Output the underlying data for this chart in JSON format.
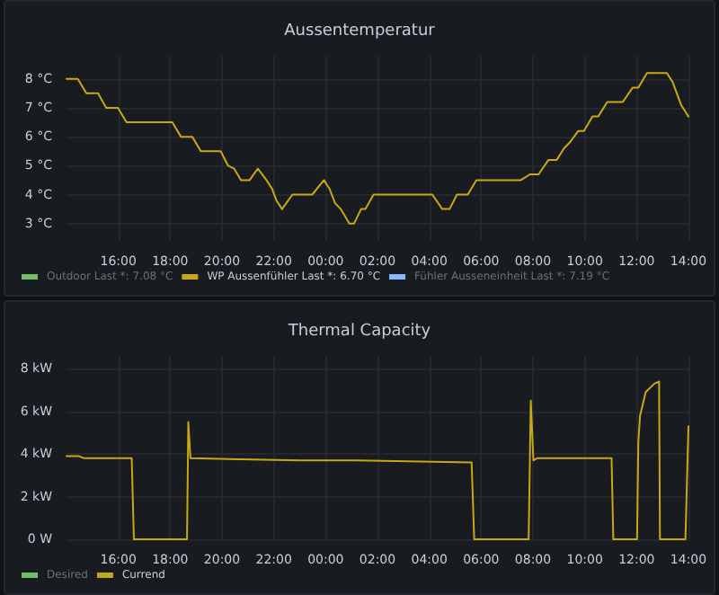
{
  "chart_data": [
    {
      "type": "line",
      "title": "Aussentemperatur",
      "x": [
        "--01-01T14:00",
        "--01-01T14:26",
        "--01-01T14:46",
        "--01-01T15:13",
        "--01-01T15:32",
        "--01-01T15:59",
        "--01-01T16:19",
        "--01-01T18:05",
        "--01-01T18:25",
        "--01-01T18:51",
        "--01-01T19:11",
        "--01-01T19:57",
        "--01-01T20:14",
        "--01-01T20:28",
        "--01-01T20:44",
        "--01-01T21:04",
        "--01-01T21:23",
        "--01-01T21:43",
        "--01-01T21:56",
        "--01-01T22:06",
        "--01-01T22:19",
        "--01-01T22:43",
        "--01-01T23:29",
        "--01-01T23:56",
        "--01-02T00:09",
        "--01-02T00:22",
        "--01-02T00:35",
        "--01-02T00:55",
        "--01-02T01:06",
        "--01-02T01:22",
        "--01-02T01:32",
        "--01-02T01:51",
        "--01-02T04:07",
        "--01-02T04:30",
        "--01-02T04:47",
        "--01-02T05:04",
        "--01-02T05:29",
        "--01-02T05:49",
        "--01-02T07:32",
        "--01-02T07:53",
        "--01-02T08:13",
        "--01-02T08:36",
        "--01-02T08:55",
        "--01-02T09:12",
        "--01-02T09:25",
        "--01-02T09:45",
        "--01-02T09:58",
        "--01-02T10:18",
        "--01-02T10:31",
        "--01-02T10:52",
        "--01-02T11:28",
        "--01-02T11:51",
        "--01-02T12:04",
        "--01-02T12:24",
        "--01-02T13:10",
        "--01-02T13:23",
        "--01-02T13:43",
        "--01-02T14:00"
      ],
      "series": [
        {
          "name": "Outdoor",
          "color": "#73bf69",
          "values": [
            null,
            null,
            null,
            null,
            null,
            null,
            null,
            null,
            null,
            null,
            null,
            null,
            null,
            null,
            null,
            null,
            null,
            null,
            null,
            null,
            null,
            null,
            null,
            null,
            null,
            null,
            null,
            null,
            null,
            null,
            null,
            null,
            null,
            null,
            null,
            null,
            null,
            null,
            null,
            null,
            null,
            null,
            null,
            null,
            null,
            null,
            null,
            null,
            null,
            null,
            null,
            null,
            null,
            null,
            null,
            null,
            null,
            null
          ]
        },
        {
          "name": "WP Aussenfühler",
          "color": "#c9a816",
          "values": [
            8.0,
            8.0,
            7.5,
            7.5,
            7.0,
            7.0,
            6.5,
            6.5,
            6.0,
            6.0,
            5.5,
            5.5,
            5.0,
            4.9,
            4.5,
            4.5,
            4.9,
            4.5,
            4.2,
            3.8,
            3.5,
            4.0,
            4.0,
            4.5,
            4.2,
            3.7,
            3.5,
            3.0,
            3.0,
            3.5,
            3.5,
            4.0,
            4.0,
            3.5,
            3.5,
            4.0,
            4.0,
            4.5,
            4.5,
            4.7,
            4.7,
            5.2,
            5.2,
            5.6,
            5.8,
            6.2,
            6.2,
            6.7,
            6.7,
            7.2,
            7.2,
            7.7,
            7.7,
            8.2,
            8.2,
            7.9,
            7.1,
            6.7
          ]
        },
        {
          "name": "Fühler Ausseneinheit",
          "color": "#8ab8ff",
          "values": [
            null,
            null,
            null,
            null,
            null,
            null,
            null,
            null,
            null,
            null,
            null,
            null,
            null,
            null,
            null,
            null,
            null,
            null,
            null,
            null,
            null,
            null,
            null,
            null,
            null,
            null,
            null,
            null,
            null,
            null,
            null,
            null,
            null,
            null,
            null,
            null,
            null,
            null,
            null,
            null,
            null,
            null,
            null,
            null,
            null,
            null,
            null,
            null,
            null,
            null,
            null,
            null,
            null,
            null,
            null,
            null,
            null,
            null
          ]
        }
      ],
      "annotations": [
        "Last *: 7.08 °C",
        "Last *: 6.70 °C",
        "Last *: 7.19 °C"
      ],
      "xlim": [
        "--01-01T14:00",
        "--01-02T14:00"
      ],
      "xticks": [
        {
          "value": "--01-01T16:00",
          "label": "16:00"
        },
        {
          "value": "--01-01T18:00",
          "label": "18:00"
        },
        {
          "value": "--01-01T20:00",
          "label": "20:00"
        },
        {
          "value": "--01-01T22:00",
          "label": "22:00"
        },
        {
          "value": "--01-02T00:00",
          "label": "00:00"
        },
        {
          "value": "--01-02T02:00",
          "label": "02:00"
        },
        {
          "value": "--01-02T04:00",
          "label": "04:00"
        },
        {
          "value": "--01-02T06:00",
          "label": "06:00"
        },
        {
          "value": "--01-02T08:00",
          "label": "08:00"
        },
        {
          "value": "--01-02T10:00",
          "label": "10:00"
        },
        {
          "value": "--01-02T12:00",
          "label": "12:00"
        },
        {
          "value": "--01-02T14:00",
          "label": "14:00"
        }
      ],
      "ylim": [
        2.4,
        8.8
      ],
      "yticks": [
        {
          "value": 3,
          "label": "3 °C"
        },
        {
          "value": 4,
          "label": "4 °C"
        },
        {
          "value": 5,
          "label": "5 °C"
        },
        {
          "value": 6,
          "label": "6 °C"
        },
        {
          "value": 7,
          "label": "7 °C"
        },
        {
          "value": 8,
          "label": "8 °C"
        }
      ],
      "grid": true,
      "legend": "bottom left",
      "marker": "none",
      "line_style": "solid"
    },
    {
      "type": "line",
      "title": "Thermal Capacity",
      "x": [
        "--01-01T14:00",
        "--01-01T14:28",
        "--01-01T14:41",
        "--01-01T16:31",
        "--01-01T16:36",
        "--01-01T18:39",
        "--01-01T18:42",
        "--01-01T18:47",
        "--01-01T23:03",
        "--01-02T01:14",
        "--01-02T05:38",
        "--01-02T05:44",
        "--01-02T07:50",
        "--01-02T07:55",
        "--01-02T08:01",
        "--01-02T08:10",
        "--01-02T11:02",
        "--01-02T11:06",
        "--01-02T12:01",
        "--01-02T12:04",
        "--01-02T12:08",
        "--01-02T12:21",
        "--01-02T12:41",
        "--01-02T12:52",
        "--01-02T12:54",
        "--01-02T13:53",
        "--01-02T14:00"
      ],
      "series": [
        {
          "name": "Desired",
          "color": "#73bf69",
          "values": [
            null,
            null,
            null,
            null,
            null,
            null,
            null,
            null,
            null,
            null,
            null,
            null,
            null,
            null,
            null,
            null,
            null,
            null,
            null,
            null,
            null,
            null,
            null,
            null,
            null,
            null,
            null
          ]
        },
        {
          "name": "Currend",
          "color": "#c9a816",
          "values": [
            3.9,
            3.9,
            3.8,
            3.8,
            0,
            0,
            5.5,
            3.8,
            3.7,
            3.7,
            3.6,
            0,
            0,
            6.5,
            3.7,
            3.8,
            3.8,
            0,
            0,
            4.6,
            5.8,
            6.9,
            7.3,
            7.4,
            0,
            0,
            5.3
          ]
        }
      ],
      "xlim": [
        "--01-01T14:00",
        "--01-02T14:00"
      ],
      "xticks": [
        {
          "value": "--01-01T16:00",
          "label": "16:00"
        },
        {
          "value": "--01-01T18:00",
          "label": "18:00"
        },
        {
          "value": "--01-01T20:00",
          "label": "20:00"
        },
        {
          "value": "--01-01T22:00",
          "label": "22:00"
        },
        {
          "value": "--01-02T00:00",
          "label": "00:00"
        },
        {
          "value": "--01-02T02:00",
          "label": "02:00"
        },
        {
          "value": "--01-02T04:00",
          "label": "04:00"
        },
        {
          "value": "--01-02T06:00",
          "label": "06:00"
        },
        {
          "value": "--01-02T08:00",
          "label": "08:00"
        },
        {
          "value": "--01-02T10:00",
          "label": "10:00"
        },
        {
          "value": "--01-02T12:00",
          "label": "12:00"
        },
        {
          "value": "--01-02T14:00",
          "label": "14:00"
        }
      ],
      "ylim": [
        0,
        8.6
      ],
      "yticks": [
        {
          "value": 0,
          "label": "0 W"
        },
        {
          "value": 2,
          "label": "2 kW"
        },
        {
          "value": 4,
          "label": "4 kW"
        },
        {
          "value": 6,
          "label": "6 kW"
        },
        {
          "value": 8,
          "label": "8 kW"
        }
      ],
      "grid": true,
      "legend": "bottom left",
      "marker": "none",
      "line_style": "solid"
    }
  ]
}
